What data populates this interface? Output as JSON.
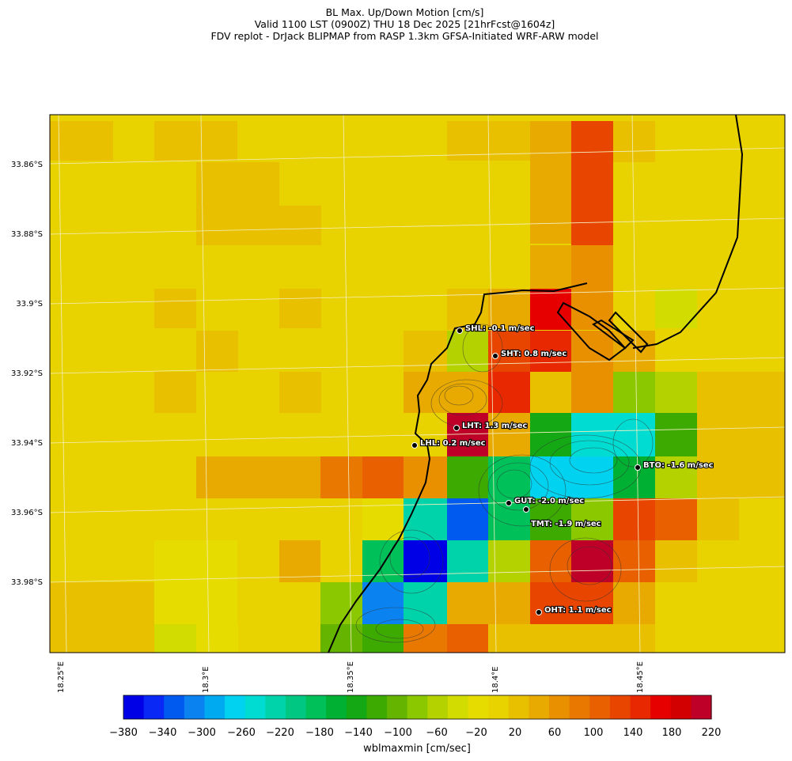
{
  "titles": {
    "line1": "BL Max. Up/Down Motion [cm/s]",
    "line2": "Valid 1100 LST (0900Z) THU 18 Dec 2025 [21hrFcst@1604z]",
    "line3": "FDV replot - DrJack BLIPMAP from RASP 1.3km GFSA-Initiated WRF-ARW model"
  },
  "lat_ticks": [
    "33.86°S",
    "33.88°S",
    "33.9°S",
    "33.92°S",
    "33.94°S",
    "33.96°S",
    "33.98°S"
  ],
  "lon_ticks": [
    "18.25°E",
    "18.3°E",
    "18.35°E",
    "18.4°E",
    "18.45°E"
  ],
  "colorbar": {
    "label": "wblmaxmin [cm/sec]",
    "ticks": [
      "−380",
      "−340",
      "−300",
      "−260",
      "−220",
      "−180",
      "−140",
      "−100",
      "−60",
      "−20",
      "20",
      "60",
      "100",
      "140",
      "180",
      "220"
    ],
    "colors": [
      "#0000e6",
      "#0a28f5",
      "#005af0",
      "#0a82f0",
      "#00aaf0",
      "#00d2f0",
      "#00dcd2",
      "#00d2aa",
      "#00c882",
      "#00c05a",
      "#00b032",
      "#14a814",
      "#3caa00",
      "#64b400",
      "#8cc800",
      "#b4d200",
      "#d2dc00",
      "#e6dc00",
      "#e8d200",
      "#e8c000",
      "#e8aa00",
      "#e89000",
      "#e87800",
      "#e86000",
      "#e84600",
      "#e82800",
      "#e60000",
      "#d20000",
      "#be0028"
    ]
  },
  "stations": [
    {
      "code": "SHL",
      "label": "SHL: -0.1 m/sec"
    },
    {
      "code": "SHT",
      "label": "SHT: 0.8 m/sec"
    },
    {
      "code": "LHT",
      "label": "LHT: 1.3 m/sec"
    },
    {
      "code": "LHL",
      "label": "LHL: 0.2 m/sec"
    },
    {
      "code": "BTO",
      "label": "BTO: -1.6 m/sec"
    },
    {
      "code": "GUT",
      "label": "GUT: -2.0 m/sec"
    },
    {
      "code": "TMT",
      "label": "TMT: -1.9 m/sec"
    },
    {
      "code": "OHT",
      "label": "OHT: 1.1 m/sec"
    }
  ]
}
